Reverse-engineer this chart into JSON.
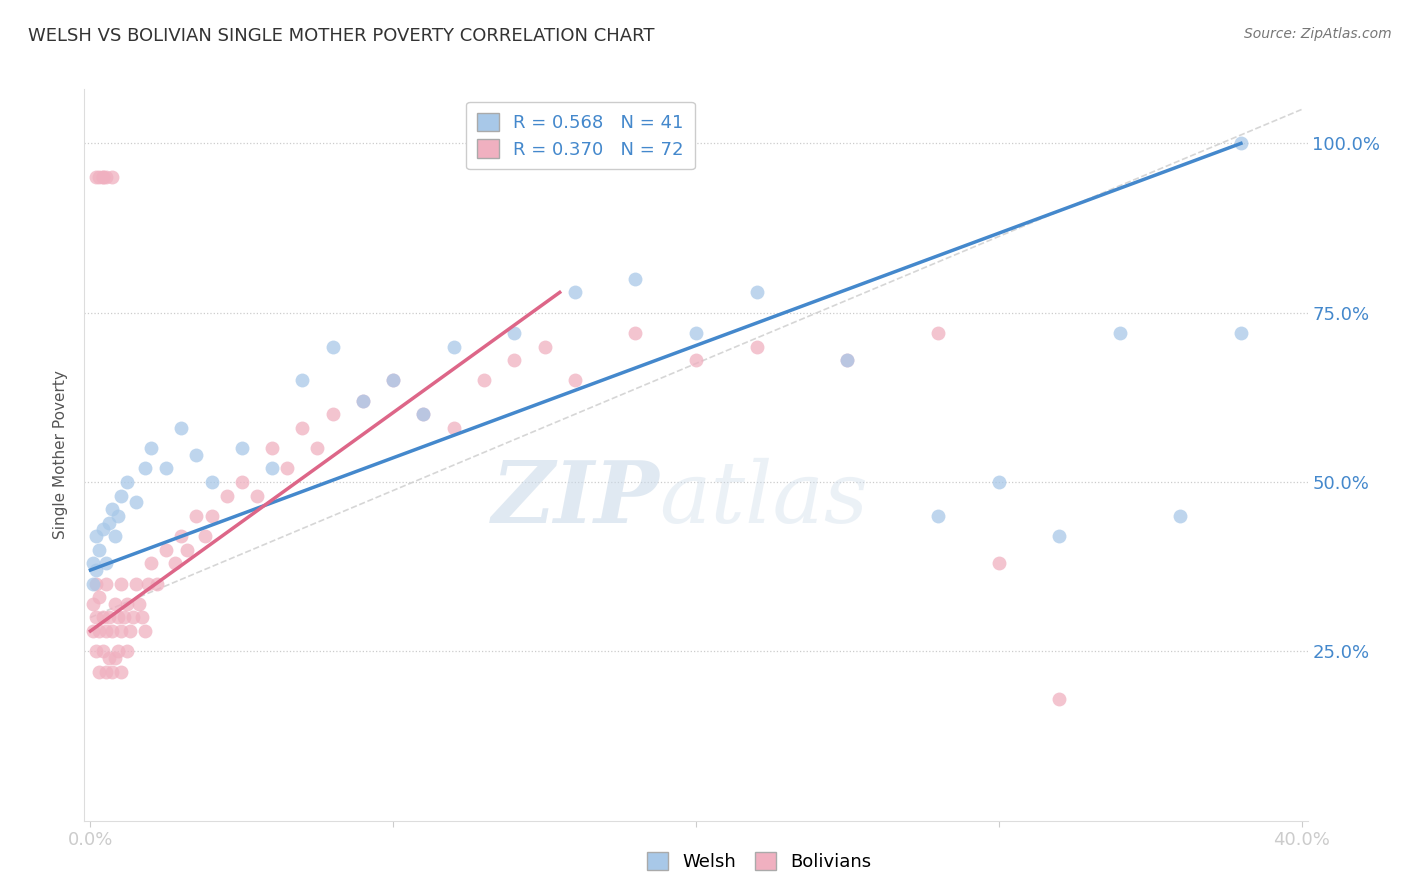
{
  "title": "WELSH VS BOLIVIAN SINGLE MOTHER POVERTY CORRELATION CHART",
  "source": "Source: ZipAtlas.com",
  "ylabel": "Single Mother Poverty",
  "watermark_zip": "ZIP",
  "watermark_atlas": "atlas",
  "xlim": [
    -0.002,
    0.402
  ],
  "ylim": [
    0.0,
    1.08
  ],
  "ytick_positions": [
    0.25,
    0.5,
    0.75,
    1.0
  ],
  "ytick_labels": [
    "25.0%",
    "50.0%",
    "75.0%",
    "100.0%"
  ],
  "xtick_positions": [
    0.0,
    0.1,
    0.2,
    0.3,
    0.4
  ],
  "xtick_labels": [
    "0.0%",
    "",
    "",
    "",
    "40.0%"
  ],
  "welsh_color": "#a8c8e8",
  "welsh_edge_color": "#a8c8e8",
  "bolivian_color": "#f0b0c0",
  "bolivian_edge_color": "#f0b0c0",
  "welsh_line_color": "#4488cc",
  "bolivian_line_color": "#dd6688",
  "diagonal_color": "#cccccc",
  "legend_welsh_R": "R = 0.568",
  "legend_welsh_N": "N = 41",
  "legend_bolivian_R": "R = 0.370",
  "legend_bolivian_N": "N = 72",
  "background_color": "#ffffff",
  "grid_color": "#cccccc",
  "title_color": "#333333",
  "axis_label_color": "#555555",
  "tick_label_color": "#4488cc",
  "source_color": "#777777",
  "legend_text_color": "#4488cc",
  "bottom_legend_text_color": "#555555",
  "welsh_x": [
    0.001,
    0.001,
    0.002,
    0.002,
    0.003,
    0.004,
    0.005,
    0.006,
    0.007,
    0.008,
    0.009,
    0.01,
    0.012,
    0.015,
    0.018,
    0.02,
    0.025,
    0.03,
    0.035,
    0.04,
    0.05,
    0.06,
    0.07,
    0.08,
    0.09,
    0.1,
    0.11,
    0.12,
    0.14,
    0.16,
    0.18,
    0.2,
    0.22,
    0.25,
    0.28,
    0.3,
    0.32,
    0.34,
    0.36,
    0.38,
    0.38
  ],
  "welsh_y": [
    0.35,
    0.38,
    0.37,
    0.42,
    0.4,
    0.43,
    0.38,
    0.44,
    0.46,
    0.42,
    0.45,
    0.48,
    0.5,
    0.47,
    0.52,
    0.55,
    0.52,
    0.58,
    0.54,
    0.5,
    0.55,
    0.52,
    0.65,
    0.7,
    0.62,
    0.65,
    0.6,
    0.7,
    0.72,
    0.78,
    0.8,
    0.72,
    0.78,
    0.68,
    0.45,
    0.5,
    0.42,
    0.72,
    0.45,
    0.72,
    1.0
  ],
  "bolivian_x": [
    0.001,
    0.001,
    0.002,
    0.002,
    0.002,
    0.003,
    0.003,
    0.003,
    0.004,
    0.004,
    0.005,
    0.005,
    0.005,
    0.006,
    0.006,
    0.007,
    0.007,
    0.008,
    0.008,
    0.009,
    0.009,
    0.01,
    0.01,
    0.01,
    0.011,
    0.012,
    0.012,
    0.013,
    0.014,
    0.015,
    0.016,
    0.017,
    0.018,
    0.019,
    0.02,
    0.022,
    0.025,
    0.028,
    0.03,
    0.032,
    0.035,
    0.038,
    0.04,
    0.045,
    0.05,
    0.055,
    0.06,
    0.065,
    0.07,
    0.075,
    0.08,
    0.09,
    0.1,
    0.11,
    0.12,
    0.13,
    0.14,
    0.15,
    0.16,
    0.18,
    0.2,
    0.22,
    0.25,
    0.28,
    0.3,
    0.32,
    0.002,
    0.003,
    0.004,
    0.004,
    0.005,
    0.007
  ],
  "bolivian_y": [
    0.28,
    0.32,
    0.25,
    0.3,
    0.35,
    0.22,
    0.28,
    0.33,
    0.25,
    0.3,
    0.22,
    0.28,
    0.35,
    0.24,
    0.3,
    0.22,
    0.28,
    0.24,
    0.32,
    0.25,
    0.3,
    0.22,
    0.28,
    0.35,
    0.3,
    0.25,
    0.32,
    0.28,
    0.3,
    0.35,
    0.32,
    0.3,
    0.28,
    0.35,
    0.38,
    0.35,
    0.4,
    0.38,
    0.42,
    0.4,
    0.45,
    0.42,
    0.45,
    0.48,
    0.5,
    0.48,
    0.55,
    0.52,
    0.58,
    0.55,
    0.6,
    0.62,
    0.65,
    0.6,
    0.58,
    0.65,
    0.68,
    0.7,
    0.65,
    0.72,
    0.68,
    0.7,
    0.68,
    0.72,
    0.38,
    0.18,
    0.95,
    0.95,
    0.95,
    0.95,
    0.95,
    0.95
  ]
}
